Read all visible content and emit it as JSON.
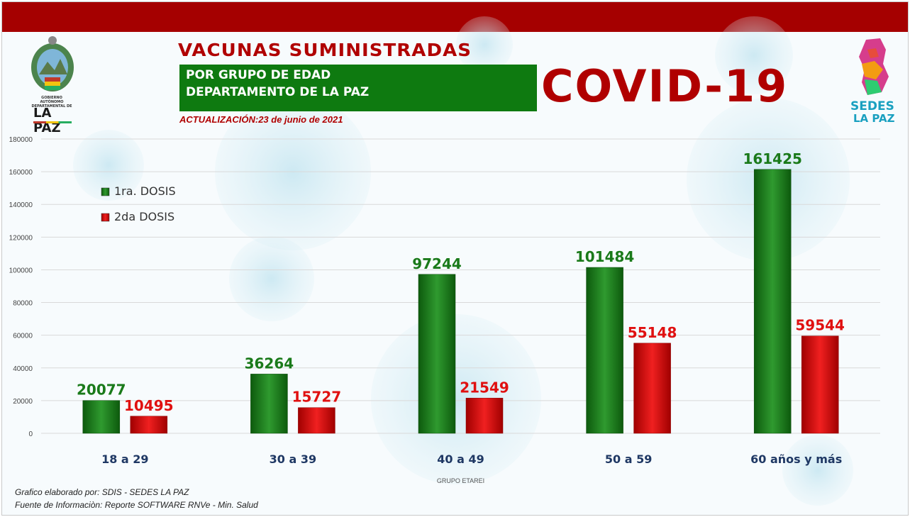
{
  "header": {
    "title": "VACUNAS SUMINISTRADAS",
    "subtitle_line1": "POR GRUPO DE EDAD",
    "subtitle_line2": "DEPARTAMENTO DE LA PAZ",
    "banner": "COVID-19",
    "updated": "ACTUALIZACIÓN:23 de junio de 2021"
  },
  "logos": {
    "left_lines": [
      "GOBIERNO AUTÓNOMO",
      "DEPARTAMENTAL DE",
      "LA PAZ"
    ],
    "right_top": "SEDES",
    "right_bottom": "LA PAZ"
  },
  "footer": {
    "line1": "Grafico elaborado por: SDIS - SEDES LA PAZ",
    "line2": "Fuente de Informaciòn: Reporte SOFTWARE RNVe - Min. Salud"
  },
  "colors": {
    "top_bar": "#a50000",
    "title_red": "#b00000",
    "dose1": "#1a7a1a",
    "dose2": "#d11010",
    "dose1_label": "#1a7a1a",
    "dose2_label": "#e01010",
    "category_label": "#1f3864"
  },
  "chart_data": {
    "type": "bar",
    "title": "",
    "xlabel": "GRUPO ETAREI",
    "ylabel": "",
    "ylim": [
      0,
      180000
    ],
    "yticks": [
      0,
      20000,
      40000,
      60000,
      80000,
      100000,
      120000,
      140000,
      160000,
      180000
    ],
    "grid": true,
    "legend_position": "top-left",
    "categories": [
      "18 a 29",
      "30 a 39",
      "40 a 49",
      "50 a 59",
      "60 años y más"
    ],
    "series": [
      {
        "name": "1ra. DOSIS",
        "values": [
          20077,
          36264,
          97244,
          101484,
          161425
        ]
      },
      {
        "name": "2da DOSIS",
        "values": [
          10495,
          15727,
          21549,
          55148,
          59544
        ]
      }
    ]
  }
}
